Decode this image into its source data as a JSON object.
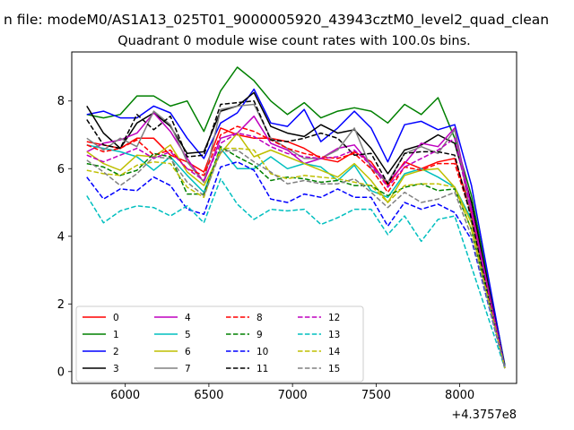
{
  "figure": {
    "suptitle": "n file: modeM0/AS1A13_025T01_9000005920_43943cztM0_level2_quad_clean"
  },
  "chart_data": {
    "type": "line",
    "title": "Quadrant 0 module wise count rates with 100.0s bins.",
    "xlabel": "",
    "ylabel": "",
    "x_offset_label": "+4.3757e8",
    "xlim": [
      5680,
      8340
    ],
    "ylim": [
      -0.35,
      9.45
    ],
    "xticks": [
      6000,
      6500,
      7000,
      7500,
      8000
    ],
    "xtick_labels": [
      "6000",
      "6500",
      "7000",
      "7500",
      "8000"
    ],
    "yticks": [
      0,
      2,
      4,
      6,
      8
    ],
    "ytick_labels": [
      "0",
      "2",
      "4",
      "6",
      "8"
    ],
    "grid": false,
    "legend_position": "lower-left",
    "legend_columns": 4,
    "x": [
      5770,
      5870,
      5970,
      6070,
      6170,
      6270,
      6370,
      6470,
      6570,
      6670,
      6770,
      6870,
      6970,
      7070,
      7170,
      7270,
      7370,
      7470,
      7570,
      7670,
      7770,
      7870,
      7970,
      8070,
      8270
    ],
    "series": [
      {
        "name": "0",
        "color": "#ff0000",
        "dash": "solid",
        "values": [
          6.8,
          6.7,
          6.6,
          6.9,
          6.9,
          6.4,
          6.2,
          5.9,
          7.2,
          7.0,
          6.9,
          6.9,
          6.8,
          6.6,
          6.3,
          6.2,
          6.5,
          6.2,
          5.5,
          6.2,
          6.0,
          6.2,
          6.3,
          4.7,
          0.1
        ]
      },
      {
        "name": "1",
        "color": "#008000",
        "dash": "solid",
        "values": [
          7.6,
          7.5,
          7.6,
          8.15,
          8.15,
          7.85,
          8.0,
          7.1,
          8.3,
          9.0,
          8.6,
          8.0,
          7.6,
          7.95,
          7.5,
          7.7,
          7.8,
          7.7,
          7.35,
          7.9,
          7.6,
          8.1,
          6.9,
          5.2,
          0.2
        ]
      },
      {
        "name": "2",
        "color": "#0000ff",
        "dash": "solid",
        "values": [
          7.6,
          7.7,
          7.5,
          7.5,
          7.85,
          7.65,
          6.9,
          6.3,
          7.35,
          7.65,
          8.35,
          7.35,
          7.25,
          7.75,
          6.8,
          7.2,
          7.7,
          7.2,
          6.2,
          7.3,
          7.4,
          7.15,
          7.3,
          5.5,
          0.15
        ]
      },
      {
        "name": "3",
        "color": "#000000",
        "dash": "solid",
        "values": [
          7.85,
          7.05,
          6.6,
          7.35,
          7.65,
          7.25,
          6.45,
          6.5,
          7.7,
          7.85,
          8.25,
          7.25,
          7.05,
          6.95,
          7.3,
          7.05,
          7.15,
          6.6,
          5.85,
          6.55,
          6.7,
          7.0,
          6.75,
          5.0,
          0.1
        ]
      },
      {
        "name": "4",
        "color": "#bf00bf",
        "dash": "solid",
        "values": [
          6.5,
          6.75,
          6.85,
          7.05,
          7.65,
          7.1,
          6.3,
          5.6,
          6.9,
          7.05,
          7.55,
          6.75,
          6.55,
          6.15,
          6.3,
          6.6,
          6.7,
          6.1,
          5.6,
          6.15,
          6.75,
          6.65,
          7.2,
          4.8,
          0.1
        ]
      },
      {
        "name": "5",
        "color": "#00bfbf",
        "dash": "solid",
        "values": [
          6.7,
          6.6,
          6.5,
          6.35,
          5.95,
          6.35,
          5.8,
          5.3,
          6.6,
          6.0,
          6.0,
          6.35,
          6.0,
          6.15,
          6.05,
          5.65,
          6.1,
          5.35,
          5.15,
          5.85,
          6.0,
          5.75,
          5.45,
          4.5,
          0.1
        ]
      },
      {
        "name": "6",
        "color": "#bfbf00",
        "dash": "solid",
        "values": [
          6.5,
          6.15,
          5.95,
          6.4,
          6.35,
          6.7,
          5.9,
          5.5,
          6.45,
          7.05,
          6.35,
          6.55,
          6.35,
          6.15,
          5.95,
          5.75,
          6.15,
          5.65,
          5.0,
          5.8,
          5.95,
          6.0,
          5.45,
          4.4,
          0.1
        ]
      },
      {
        "name": "7",
        "color": "#808080",
        "dash": "solid",
        "values": [
          6.9,
          6.55,
          6.9,
          6.65,
          7.7,
          7.3,
          6.2,
          5.6,
          7.75,
          7.85,
          7.9,
          6.9,
          6.6,
          6.3,
          6.3,
          6.55,
          7.2,
          6.0,
          5.6,
          6.45,
          6.65,
          6.45,
          7.15,
          4.5,
          0.1
        ]
      },
      {
        "name": "8",
        "color": "#ff0000",
        "dash": "dashed",
        "values": [
          6.7,
          6.5,
          6.6,
          6.85,
          6.4,
          6.55,
          6.0,
          5.8,
          7.0,
          7.25,
          7.1,
          6.85,
          6.6,
          6.45,
          6.35,
          6.3,
          6.45,
          6.0,
          5.3,
          6.05,
          5.95,
          6.15,
          6.15,
          4.6,
          0.1
        ]
      },
      {
        "name": "9",
        "color": "#008000",
        "dash": "dashed",
        "values": [
          6.15,
          6.05,
          5.8,
          5.95,
          6.45,
          6.35,
          5.25,
          5.25,
          6.65,
          6.35,
          6.1,
          5.65,
          5.75,
          5.7,
          5.6,
          5.65,
          5.5,
          5.5,
          5.2,
          5.45,
          5.55,
          5.35,
          5.4,
          4.2,
          0.1
        ]
      },
      {
        "name": "10",
        "color": "#0000ff",
        "dash": "dashed",
        "values": [
          5.75,
          5.1,
          5.4,
          5.35,
          5.75,
          5.5,
          4.8,
          4.65,
          6.05,
          6.2,
          5.95,
          5.1,
          5.0,
          5.25,
          5.15,
          5.4,
          5.15,
          5.15,
          4.3,
          5.0,
          4.8,
          4.95,
          4.7,
          3.9,
          0.1
        ]
      },
      {
        "name": "11",
        "color": "#000000",
        "dash": "dashed",
        "values": [
          7.45,
          6.7,
          6.6,
          7.6,
          7.15,
          7.55,
          6.35,
          6.4,
          7.9,
          7.95,
          8.0,
          6.85,
          6.8,
          6.9,
          7.05,
          6.9,
          6.4,
          6.45,
          5.55,
          6.45,
          6.5,
          6.5,
          6.4,
          4.5,
          0.1
        ]
      },
      {
        "name": "12",
        "color": "#bf00bf",
        "dash": "dashed",
        "values": [
          6.4,
          6.2,
          6.4,
          6.6,
          6.3,
          6.5,
          6.0,
          5.65,
          6.75,
          7.05,
          6.95,
          6.65,
          6.45,
          6.35,
          6.3,
          6.35,
          6.55,
          6.1,
          5.45,
          6.05,
          6.3,
          6.55,
          6.9,
          4.7,
          0.1
        ]
      },
      {
        "name": "13",
        "color": "#00bfbf",
        "dash": "dashed",
        "values": [
          5.2,
          4.4,
          4.75,
          4.9,
          4.85,
          4.6,
          4.9,
          4.4,
          5.7,
          4.95,
          4.5,
          4.8,
          4.75,
          4.8,
          4.35,
          4.55,
          4.8,
          4.8,
          4.05,
          4.6,
          3.85,
          4.5,
          4.6,
          3.1,
          0.1
        ]
      },
      {
        "name": "14",
        "color": "#bfbf00",
        "dash": "dashed",
        "values": [
          5.95,
          5.85,
          5.8,
          6.1,
          6.2,
          6.15,
          5.45,
          5.15,
          6.6,
          6.6,
          6.55,
          5.85,
          5.7,
          5.8,
          5.75,
          5.7,
          5.6,
          5.5,
          5.0,
          5.5,
          5.55,
          5.55,
          5.45,
          4.2,
          0.1
        ]
      },
      {
        "name": "15",
        "color": "#808080",
        "dash": "dashed",
        "values": [
          6.25,
          5.9,
          5.5,
          5.85,
          6.35,
          6.3,
          5.6,
          5.2,
          6.5,
          6.55,
          6.2,
          5.9,
          5.55,
          5.65,
          5.55,
          5.55,
          5.7,
          5.3,
          4.85,
          5.3,
          5.0,
          5.1,
          5.3,
          4.0,
          0.1
        ]
      }
    ]
  }
}
